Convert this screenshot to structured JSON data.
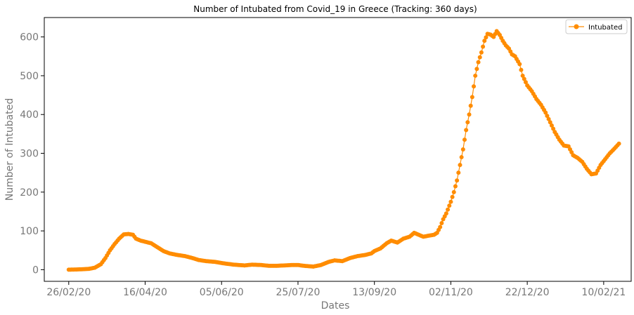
{
  "chart_data": {
    "type": "line",
    "title": "Number of Intubated from Covid_19 in Greece (Tracking: 360 days)",
    "xlabel": "Dates",
    "ylabel": "Number of Intubated",
    "x_start": "2020-02-26",
    "x_ticks": [
      {
        "date": "2020-02-26",
        "label": "26/02/20"
      },
      {
        "date": "2020-04-16",
        "label": "16/04/20"
      },
      {
        "date": "2020-06-05",
        "label": "05/06/20"
      },
      {
        "date": "2020-07-25",
        "label": "25/07/20"
      },
      {
        "date": "2020-09-13",
        "label": "13/09/20"
      },
      {
        "date": "2020-11-02",
        "label": "02/11/20"
      },
      {
        "date": "2020-12-22",
        "label": "22/12/20"
      },
      {
        "date": "2021-02-10",
        "label": "10/02/21"
      }
    ],
    "y_ticks": [
      0,
      100,
      200,
      300,
      400,
      500,
      600
    ],
    "xlim": [
      "2020-02-10",
      "2021-02-28"
    ],
    "ylim": [
      -30,
      650
    ],
    "grid": false,
    "legend_position": "top-right",
    "series": [
      {
        "name": "Intubated",
        "color": "#ff8c00",
        "marker": "circle",
        "points": [
          [
            "2020-02-26",
            0
          ],
          [
            "2020-03-05",
            1
          ],
          [
            "2020-03-10",
            2
          ],
          [
            "2020-03-14",
            5
          ],
          [
            "2020-03-18",
            14
          ],
          [
            "2020-03-21",
            30
          ],
          [
            "2020-03-24",
            50
          ],
          [
            "2020-03-27",
            66
          ],
          [
            "2020-03-30",
            80
          ],
          [
            "2020-04-02",
            91
          ],
          [
            "2020-04-05",
            92
          ],
          [
            "2020-04-08",
            90
          ],
          [
            "2020-04-10",
            80
          ],
          [
            "2020-04-13",
            75
          ],
          [
            "2020-04-16",
            72
          ],
          [
            "2020-04-20",
            68
          ],
          [
            "2020-04-24",
            58
          ],
          [
            "2020-04-28",
            48
          ],
          [
            "2020-05-02",
            42
          ],
          [
            "2020-05-07",
            38
          ],
          [
            "2020-05-12",
            35
          ],
          [
            "2020-05-17",
            30
          ],
          [
            "2020-05-21",
            25
          ],
          [
            "2020-05-26",
            22
          ],
          [
            "2020-06-01",
            20
          ],
          [
            "2020-06-07",
            16
          ],
          [
            "2020-06-13",
            13
          ],
          [
            "2020-06-20",
            11
          ],
          [
            "2020-06-25",
            13
          ],
          [
            "2020-07-01",
            12
          ],
          [
            "2020-07-06",
            10
          ],
          [
            "2020-07-11",
            10
          ],
          [
            "2020-07-16",
            11
          ],
          [
            "2020-07-21",
            12
          ],
          [
            "2020-07-25",
            12
          ],
          [
            "2020-07-29",
            10
          ],
          [
            "2020-08-04",
            8
          ],
          [
            "2020-08-09",
            12
          ],
          [
            "2020-08-14",
            20
          ],
          [
            "2020-08-18",
            24
          ],
          [
            "2020-08-23",
            22
          ],
          [
            "2020-08-28",
            30
          ],
          [
            "2020-09-02",
            35
          ],
          [
            "2020-09-07",
            38
          ],
          [
            "2020-09-11",
            42
          ],
          [
            "2020-09-13",
            48
          ],
          [
            "2020-09-17",
            55
          ],
          [
            "2020-09-21",
            68
          ],
          [
            "2020-09-24",
            75
          ],
          [
            "2020-09-28",
            70
          ],
          [
            "2020-10-02",
            80
          ],
          [
            "2020-10-06",
            85
          ],
          [
            "2020-10-09",
            95
          ],
          [
            "2020-10-12",
            90
          ],
          [
            "2020-10-15",
            85
          ],
          [
            "2020-10-19",
            88
          ],
          [
            "2020-10-22",
            90
          ],
          [
            "2020-10-24",
            95
          ],
          [
            "2020-10-26",
            110
          ],
          [
            "2020-10-28",
            130
          ],
          [
            "2020-10-30",
            145
          ],
          [
            "2020-11-02",
            175
          ],
          [
            "2020-11-04",
            200
          ],
          [
            "2020-11-06",
            230
          ],
          [
            "2020-11-08",
            270
          ],
          [
            "2020-11-10",
            310
          ],
          [
            "2020-11-12",
            360
          ],
          [
            "2020-11-14",
            400
          ],
          [
            "2020-11-16",
            445
          ],
          [
            "2020-11-18",
            500
          ],
          [
            "2020-11-20",
            535
          ],
          [
            "2020-11-22",
            560
          ],
          [
            "2020-11-24",
            590
          ],
          [
            "2020-11-26",
            608
          ],
          [
            "2020-11-28",
            606
          ],
          [
            "2020-11-30",
            600
          ],
          [
            "2020-12-02",
            615
          ],
          [
            "2020-12-04",
            605
          ],
          [
            "2020-12-06",
            590
          ],
          [
            "2020-12-08",
            578
          ],
          [
            "2020-12-10",
            570
          ],
          [
            "2020-12-12",
            555
          ],
          [
            "2020-12-14",
            550
          ],
          [
            "2020-12-17",
            530
          ],
          [
            "2020-12-19",
            500
          ],
          [
            "2020-12-22",
            475
          ],
          [
            "2020-12-25",
            460
          ],
          [
            "2020-12-28",
            440
          ],
          [
            "2020-12-31",
            425
          ],
          [
            "2021-01-03",
            405
          ],
          [
            "2021-01-06",
            380
          ],
          [
            "2021-01-09",
            355
          ],
          [
            "2021-01-12",
            335
          ],
          [
            "2021-01-15",
            320
          ],
          [
            "2021-01-18",
            318
          ],
          [
            "2021-01-21",
            295
          ],
          [
            "2021-01-24",
            288
          ],
          [
            "2021-01-27",
            278
          ],
          [
            "2021-01-30",
            260
          ],
          [
            "2021-02-02",
            246
          ],
          [
            "2021-02-05",
            248
          ],
          [
            "2021-02-08",
            270
          ],
          [
            "2021-02-11",
            285
          ],
          [
            "2021-02-14",
            300
          ],
          [
            "2021-02-17",
            312
          ],
          [
            "2021-02-20",
            325
          ]
        ]
      }
    ]
  }
}
